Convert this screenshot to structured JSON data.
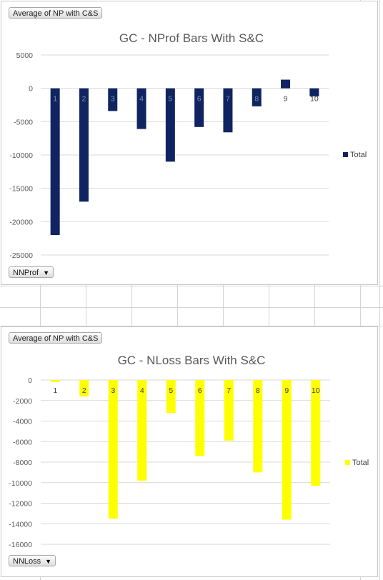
{
  "charts": [
    {
      "filter_label": "Average of NP with C&S",
      "row_field": "NNProf",
      "chart_data": {
        "type": "bar",
        "title": "GC - NProf Bars With S&C",
        "categories": [
          "1",
          "2",
          "3",
          "4",
          "5",
          "6",
          "7",
          "8",
          "9",
          "10"
        ],
        "series": [
          {
            "name": "Total",
            "color": "#0f2460",
            "values": [
              -22000,
              -17000,
              -3400,
              -6100,
              -11000,
              -5800,
              -6600,
              -2700,
              1300,
              -1200
            ]
          }
        ],
        "yticks": [
          5000,
          0,
          -5000,
          -10000,
          -15000,
          -20000,
          -25000
        ],
        "ylim": [
          -25000,
          5000
        ],
        "legend": "right",
        "grid": true
      }
    },
    {
      "filter_label": "Average of NP with C&S",
      "row_field": "NNLoss",
      "chart_data": {
        "type": "bar",
        "title": "GC - NLoss Bars With S&C",
        "categories": [
          "1",
          "2",
          "3",
          "4",
          "5",
          "6",
          "7",
          "8",
          "9",
          "10"
        ],
        "series": [
          {
            "name": "Total",
            "color": "#ffff00",
            "values": [
              -200,
              -1600,
              -13500,
              -9800,
              -3200,
              -7400,
              -5900,
              -9000,
              -13600,
              -10300
            ]
          }
        ],
        "yticks": [
          0,
          -2000,
          -4000,
          -6000,
          -8000,
          -10000,
          -12000,
          -14000,
          -16000
        ],
        "ylim": [
          -16000,
          0
        ],
        "legend": "right",
        "grid": true
      }
    }
  ]
}
